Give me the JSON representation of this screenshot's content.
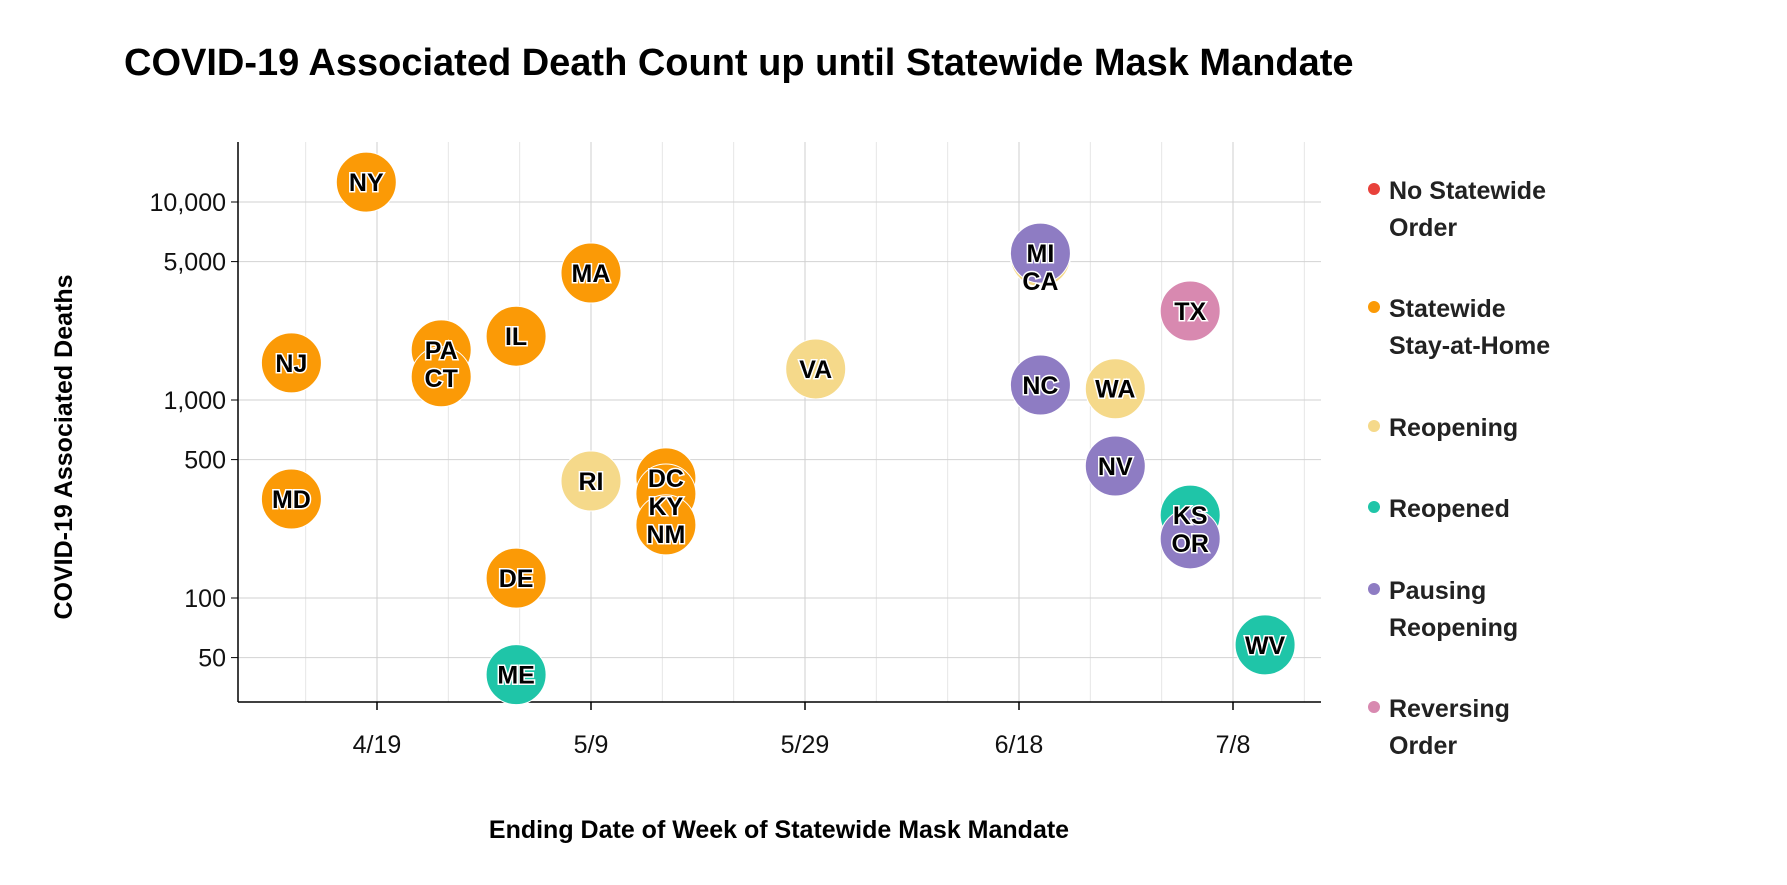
{
  "chart_data": {
    "type": "scatter",
    "title": "COVID-19 Associated Death Count up until Statewide Mask Mandate",
    "xlabel": "Ending Date of Week of Statewide Mask Mandate",
    "ylabel": "COVID-19 Associated Deaths",
    "x_ticks": [
      "4/19",
      "5/9",
      "5/29",
      "6/18",
      "7/8"
    ],
    "y_ticks": [
      "10,000",
      "5,000",
      "1,000",
      "500",
      "100",
      "50"
    ],
    "y_tick_values": [
      10000,
      5000,
      1000,
      500,
      100,
      50
    ],
    "y_scale": "log",
    "grid": true,
    "legend_position": "right",
    "categories": [
      {
        "name": "No Statewide Order",
        "lines": [
          "No Statewide",
          "Order"
        ],
        "color": "#e8413b"
      },
      {
        "name": "Statewide Stay-at-Home",
        "lines": [
          "Statewide",
          "Stay-at-Home"
        ],
        "color": "#fb9a06"
      },
      {
        "name": "Reopening",
        "lines": [
          "Reopening"
        ],
        "color": "#f5d98a"
      },
      {
        "name": "Reopened",
        "lines": [
          "Reopened"
        ],
        "color": "#1fc5a8"
      },
      {
        "name": "Pausing Reopening",
        "lines": [
          "Pausing",
          "Reopening"
        ],
        "color": "#8e7cc3"
      },
      {
        "name": "Reversing Order",
        "lines": [
          "Reversing",
          "Order"
        ],
        "color": "#d889b0"
      }
    ],
    "points": [
      {
        "state": "NY",
        "date": "4/18",
        "deaths": 12600,
        "category": "Statewide Stay-at-Home"
      },
      {
        "state": "NJ",
        "date": "4/11",
        "deaths": 1540,
        "category": "Statewide Stay-at-Home"
      },
      {
        "state": "MD",
        "date": "4/11",
        "deaths": 316,
        "category": "Statewide Stay-at-Home"
      },
      {
        "state": "PA",
        "date": "4/25",
        "deaths": 1790,
        "category": "Statewide Stay-at-Home"
      },
      {
        "state": "CT",
        "date": "4/25",
        "deaths": 1310,
        "category": "Statewide Stay-at-Home"
      },
      {
        "state": "IL",
        "date": "5/2",
        "deaths": 2100,
        "category": "Statewide Stay-at-Home"
      },
      {
        "state": "MA",
        "date": "5/9",
        "deaths": 4380,
        "category": "Statewide Stay-at-Home"
      },
      {
        "state": "DE",
        "date": "5/2",
        "deaths": 126,
        "category": "Statewide Stay-at-Home"
      },
      {
        "state": "ME",
        "date": "5/2",
        "deaths": 41,
        "category": "Reopened"
      },
      {
        "state": "RI",
        "date": "5/9",
        "deaths": 390,
        "category": "Reopening"
      },
      {
        "state": "DC",
        "date": "5/16",
        "deaths": 404,
        "category": "Statewide Stay-at-Home"
      },
      {
        "state": "KY",
        "date": "5/16",
        "deaths": 335,
        "category": "Statewide Stay-at-Home"
      },
      {
        "state": "NM",
        "date": "5/16",
        "deaths": 234,
        "category": "Statewide Stay-at-Home"
      },
      {
        "state": "VA",
        "date": "5/30",
        "deaths": 1435,
        "category": "Reopening"
      },
      {
        "state": "CA",
        "date": "6/20",
        "deaths": 5300,
        "category": "Reopening"
      },
      {
        "state": "MI",
        "date": "6/20",
        "deaths": 5520,
        "category": "Pausing Reopening"
      },
      {
        "state": "TX",
        "date": "7/4",
        "deaths": 2815,
        "category": "Reversing Order"
      },
      {
        "state": "NC",
        "date": "6/20",
        "deaths": 1190,
        "category": "Pausing Reopening"
      },
      {
        "state": "WA",
        "date": "6/27",
        "deaths": 1140,
        "category": "Reopening"
      },
      {
        "state": "NV",
        "date": "6/27",
        "deaths": 464,
        "category": "Pausing Reopening"
      },
      {
        "state": "KS",
        "date": "7/4",
        "deaths": 262,
        "category": "Reopened"
      },
      {
        "state": "OR",
        "date": "7/4",
        "deaths": 199,
        "category": "Pausing Reopening"
      },
      {
        "state": "WV",
        "date": "7/11",
        "deaths": 58,
        "category": "Reopened"
      }
    ]
  }
}
